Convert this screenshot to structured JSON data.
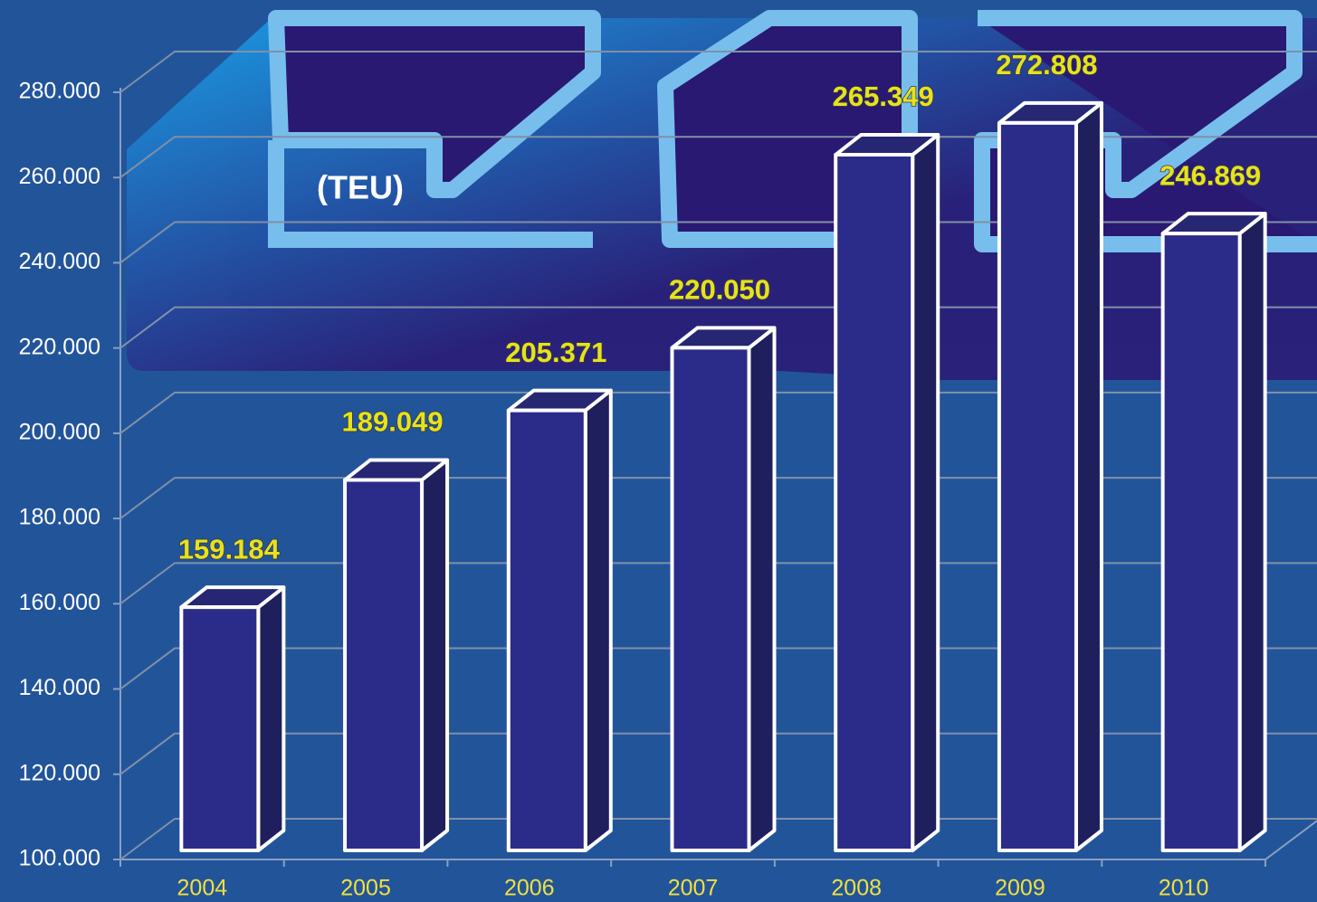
{
  "chart_data": {
    "type": "bar3d",
    "y_axis_label": "(TEU)",
    "categories": [
      "2004",
      "2005",
      "2006",
      "2007",
      "2008",
      "2009",
      "2010"
    ],
    "values": [
      159184,
      189049,
      205371,
      220050,
      265349,
      272808,
      246869
    ],
    "value_labels": [
      "159.184",
      "189.049",
      "205.371",
      "220.050",
      "265.349",
      "272.808",
      "246.869"
    ],
    "color": "#2b2b8a",
    "ylim": [
      100000,
      280000
    ],
    "yticks": [
      {
        "value": 100000,
        "label": "100.000"
      },
      {
        "value": 120000,
        "label": "120.000"
      },
      {
        "value": 140000,
        "label": "140.000"
      },
      {
        "value": 160000,
        "label": "160.000"
      },
      {
        "value": 180000,
        "label": "180.000"
      },
      {
        "value": 200000,
        "label": "200.000"
      },
      {
        "value": 220000,
        "label": "220.000"
      },
      {
        "value": 240000,
        "label": "240.000"
      },
      {
        "value": 260000,
        "label": "260.000"
      },
      {
        "value": 280000,
        "label": "280.000"
      }
    ],
    "grid": true
  }
}
